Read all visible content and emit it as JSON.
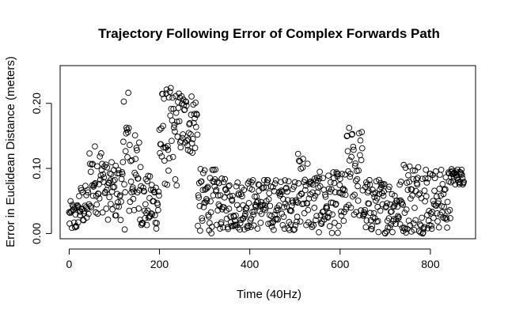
{
  "chart_data": {
    "type": "scatter",
    "title": "Trajectory Following Error of Complex Forwards Path",
    "xlabel": "Time (40Hz)",
    "ylabel": "Error in Euclidean Distance (meters)",
    "xlim": [
      -20,
      900
    ],
    "ylim": [
      -0.008,
      0.258
    ],
    "xticks": [
      0,
      200,
      400,
      600,
      800
    ],
    "xtick_labels": [
      "0",
      "200",
      "400",
      "600",
      "800"
    ],
    "yticks": [
      0.0,
      0.1,
      0.2
    ],
    "ytick_labels": [
      "0.00",
      "0.10",
      "0.20"
    ],
    "grid": false,
    "marker": "open-circle",
    "segments": [
      {
        "x_start": 0,
        "x_end": 20,
        "low": 0.0,
        "high": 0.05
      },
      {
        "x_start": 20,
        "x_end": 45,
        "low": 0.01,
        "high": 0.075
      },
      {
        "x_start": 45,
        "x_end": 80,
        "low": 0.03,
        "high": 0.14
      },
      {
        "x_start": 80,
        "x_end": 120,
        "low": 0.02,
        "high": 0.11
      },
      {
        "x_start": 120,
        "x_end": 135,
        "low": 0.005,
        "high": 0.235
      },
      {
        "x_start": 135,
        "x_end": 160,
        "low": 0.02,
        "high": 0.155
      },
      {
        "x_start": 160,
        "x_end": 200,
        "low": 0.005,
        "high": 0.09
      },
      {
        "x_start": 200,
        "x_end": 240,
        "low": 0.07,
        "high": 0.225
      },
      {
        "x_start": 240,
        "x_end": 285,
        "low": 0.12,
        "high": 0.22
      },
      {
        "x_start": 285,
        "x_end": 330,
        "low": 0.0,
        "high": 0.1
      },
      {
        "x_start": 330,
        "x_end": 500,
        "low": 0.005,
        "high": 0.085
      },
      {
        "x_start": 500,
        "x_end": 530,
        "low": 0.01,
        "high": 0.125
      },
      {
        "x_start": 530,
        "x_end": 615,
        "low": 0.0,
        "high": 0.095
      },
      {
        "x_start": 615,
        "x_end": 650,
        "low": 0.02,
        "high": 0.165
      },
      {
        "x_start": 650,
        "x_end": 740,
        "low": 0.0,
        "high": 0.085
      },
      {
        "x_start": 740,
        "x_end": 800,
        "low": 0.0,
        "high": 0.115
      },
      {
        "x_start": 800,
        "x_end": 845,
        "low": 0.005,
        "high": 0.1
      },
      {
        "x_start": 845,
        "x_end": 875,
        "low": 0.075,
        "high": 0.1
      }
    ]
  }
}
